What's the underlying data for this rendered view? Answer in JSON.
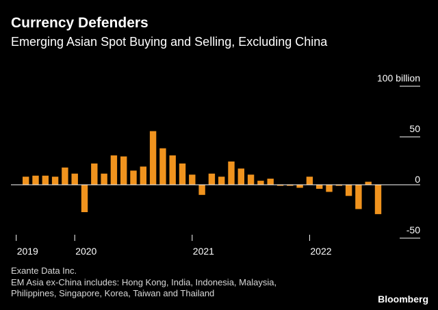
{
  "title": "Currency Defenders",
  "subtitle": "Emerging Asian Spot Buying and Selling, Excluding China",
  "footer": {
    "source": "Exante Data Inc.",
    "note1": "EM Asia ex-China includes: Hong Kong, India, Indonesia, Malaysia,",
    "note2": "Philippines, Singapore, Korea, Taiwan and Thailand"
  },
  "logo": "Bloomberg",
  "colors": {
    "bar": "#f0931e",
    "background": "#000000",
    "text": "#ffffff",
    "muted": "#d8d8d8"
  },
  "chart_data": {
    "type": "bar",
    "title": "Currency Defenders",
    "subtitle": "Emerging Asian Spot Buying and Selling, Excluding China",
    "ylabel": "100 billion",
    "unit": "billion",
    "ylim": [
      -50,
      100
    ],
    "yticks": [
      100,
      50,
      0,
      -50
    ],
    "ytick_labels": [
      "100 billion",
      "50",
      "0",
      "-50"
    ],
    "x_start": "2019-02",
    "x_ticks": [
      {
        "label": "2019",
        "index": 0
      },
      {
        "label": "2020",
        "index": 5
      },
      {
        "label": "2021",
        "index": 17
      },
      {
        "label": "2022",
        "index": 29
      }
    ],
    "values": [
      8,
      9,
      9,
      8,
      17,
      11,
      -27,
      21,
      11,
      29,
      28,
      14,
      18,
      53,
      36,
      29,
      21,
      10,
      -10,
      11,
      8,
      23,
      16,
      10,
      4,
      6,
      -1,
      -1,
      -3,
      8,
      -4,
      -7,
      -1,
      -11,
      -24,
      3,
      -29
    ]
  }
}
